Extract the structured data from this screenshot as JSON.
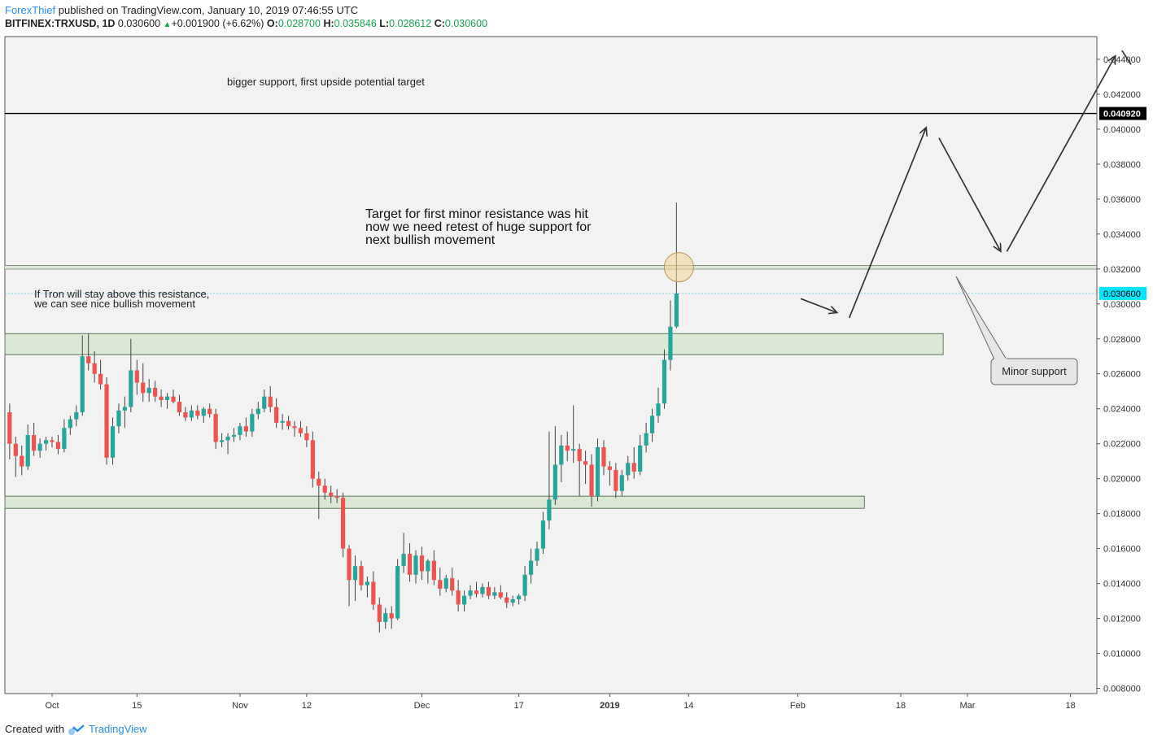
{
  "header": {
    "author": "ForexThief",
    "published_text": " published on TradingView.com, January 10, 2019 07:46:55 UTC",
    "symbol": "BITFINEX:TRXUSD, 1D",
    "last": "0.030600",
    "change": "+0.001900 (+6.62%)",
    "o_label": "O:",
    "o": "0.028700",
    "h_label": "H:",
    "h": "0.035846",
    "l_label": "L:",
    "l": "0.028612",
    "c_label": "C:",
    "c": "0.030600"
  },
  "footer": {
    "created_with": "Created with",
    "brand": "TradingView"
  },
  "colors": {
    "up": "#26a69a",
    "down": "#ef5350",
    "zone_fill": "#dbe8d6",
    "zone_stroke": "#5f7a5a",
    "bg": "#f2f2f2",
    "price_tag": "#00e5ff",
    "level_tag": "#000000"
  },
  "annotations": {
    "bigger_support": "bigger support, first upside potential target",
    "target_line1": "Target for first minor resistance was hit",
    "target_line2": "now we need retest of huge support for",
    "target_line3": "next bullish movement",
    "tron_line1": "If Tron will stay above this resistance,",
    "tron_line2": "we can see nice bullish movement",
    "minor_support": "Minor support"
  },
  "chart_data": {
    "type": "candlestick",
    "symbol": "BITFINEX:TRXUSD",
    "timeframe": "1D",
    "ylim": [
      0.0077,
      0.0453
    ],
    "y_ticks": [
      "0.044000",
      "0.042000",
      "0.040000",
      "0.038000",
      "0.036000",
      "0.034000",
      "0.032000",
      "0.030000",
      "0.028000",
      "0.026000",
      "0.024000",
      "0.022000",
      "0.020000",
      "0.018000",
      "0.016000",
      "0.014000",
      "0.012000",
      "0.010000",
      "0.008000"
    ],
    "x_labels": [
      {
        "label": "Oct",
        "day": 0
      },
      {
        "label": "15",
        "day": 14
      },
      {
        "label": "Nov",
        "day": 31
      },
      {
        "label": "12",
        "day": 42
      },
      {
        "label": "Dec",
        "day": 61
      },
      {
        "label": "17",
        "day": 77
      },
      {
        "label": "2019",
        "day": 92
      },
      {
        "label": "14",
        "day": 105
      },
      {
        "label": "Feb",
        "day": 123
      },
      {
        "label": "18",
        "day": 140
      },
      {
        "label": "Mar",
        "day": 151
      },
      {
        "label": "18",
        "day": 168
      }
    ],
    "first_day": -7,
    "price_tag": "0.030600",
    "level_tag": "0.040920",
    "levels": {
      "current": 0.0306,
      "resistance_line": 0.0409,
      "minor_resistance_top": 0.0322,
      "minor_resistance_bottom": 0.032
    },
    "zones": [
      {
        "top": 0.0283,
        "bottom": 0.0271,
        "end_day": 147
      },
      {
        "top": 0.019,
        "bottom": 0.0183,
        "end_day": 134
      }
    ],
    "projection": [
      {
        "x": 123.5,
        "y": 0.0303,
        "x2": 129.5,
        "y2": 0.0295
      },
      {
        "x": 131.5,
        "y": 0.0292,
        "x2": 144.2,
        "y2": 0.0401
      },
      {
        "x": 146.3,
        "y": 0.0395,
        "x2": 156.5,
        "y2": 0.033
      },
      {
        "x": 157.5,
        "y": 0.033,
        "x2": 175.4,
        "y2": 0.0442
      },
      {
        "x": 176.5,
        "y": 0.0445,
        "x2": 178.0,
        "y2": 0.0437
      }
    ],
    "ohlc": [
      {
        "d": -7,
        "o": 0.0238,
        "h": 0.0243,
        "l": 0.0211,
        "c": 0.022
      },
      {
        "d": -6,
        "o": 0.022,
        "h": 0.0224,
        "l": 0.0201,
        "c": 0.0213
      },
      {
        "d": -5,
        "o": 0.0213,
        "h": 0.0219,
        "l": 0.0202,
        "c": 0.0207
      },
      {
        "d": -4,
        "o": 0.0207,
        "h": 0.0231,
        "l": 0.0205,
        "c": 0.0225
      },
      {
        "d": -3,
        "o": 0.0225,
        "h": 0.0232,
        "l": 0.0213,
        "c": 0.0216
      },
      {
        "d": -2,
        "o": 0.0216,
        "h": 0.0223,
        "l": 0.0212,
        "c": 0.022
      },
      {
        "d": -1,
        "o": 0.022,
        "h": 0.0224,
        "l": 0.0216,
        "c": 0.0222
      },
      {
        "d": 0,
        "o": 0.0222,
        "h": 0.0224,
        "l": 0.0218,
        "c": 0.0221
      },
      {
        "d": 1,
        "o": 0.0221,
        "h": 0.0225,
        "l": 0.0214,
        "c": 0.0217
      },
      {
        "d": 2,
        "o": 0.0217,
        "h": 0.0234,
        "l": 0.0215,
        "c": 0.0229
      },
      {
        "d": 3,
        "o": 0.0229,
        "h": 0.0236,
        "l": 0.0225,
        "c": 0.0234
      },
      {
        "d": 4,
        "o": 0.0234,
        "h": 0.0242,
        "l": 0.023,
        "c": 0.0238
      },
      {
        "d": 5,
        "o": 0.0238,
        "h": 0.0282,
        "l": 0.0236,
        "c": 0.027
      },
      {
        "d": 6,
        "o": 0.027,
        "h": 0.0283,
        "l": 0.0262,
        "c": 0.0266
      },
      {
        "d": 7,
        "o": 0.0266,
        "h": 0.0273,
        "l": 0.0255,
        "c": 0.026
      },
      {
        "d": 8,
        "o": 0.026,
        "h": 0.0268,
        "l": 0.0251,
        "c": 0.0254
      },
      {
        "d": 9,
        "o": 0.0254,
        "h": 0.0258,
        "l": 0.0208,
        "c": 0.0212
      },
      {
        "d": 10,
        "o": 0.0212,
        "h": 0.0235,
        "l": 0.0208,
        "c": 0.023
      },
      {
        "d": 11,
        "o": 0.023,
        "h": 0.0243,
        "l": 0.0226,
        "c": 0.0239
      },
      {
        "d": 12,
        "o": 0.0239,
        "h": 0.0247,
        "l": 0.0229,
        "c": 0.0241
      },
      {
        "d": 13,
        "o": 0.0241,
        "h": 0.028,
        "l": 0.0238,
        "c": 0.0262
      },
      {
        "d": 14,
        "o": 0.0262,
        "h": 0.0268,
        "l": 0.0248,
        "c": 0.0255
      },
      {
        "d": 15,
        "o": 0.0255,
        "h": 0.0266,
        "l": 0.0244,
        "c": 0.0249
      },
      {
        "d": 16,
        "o": 0.0249,
        "h": 0.0257,
        "l": 0.0244,
        "c": 0.0252
      },
      {
        "d": 17,
        "o": 0.0252,
        "h": 0.0256,
        "l": 0.0244,
        "c": 0.0247
      },
      {
        "d": 18,
        "o": 0.0247,
        "h": 0.0251,
        "l": 0.0241,
        "c": 0.0245
      },
      {
        "d": 19,
        "o": 0.0245,
        "h": 0.0249,
        "l": 0.024,
        "c": 0.0247
      },
      {
        "d": 20,
        "o": 0.0247,
        "h": 0.0251,
        "l": 0.0243,
        "c": 0.0244
      },
      {
        "d": 21,
        "o": 0.0244,
        "h": 0.0248,
        "l": 0.0236,
        "c": 0.0238
      },
      {
        "d": 22,
        "o": 0.0238,
        "h": 0.0241,
        "l": 0.0233,
        "c": 0.0235
      },
      {
        "d": 23,
        "o": 0.0235,
        "h": 0.0242,
        "l": 0.0233,
        "c": 0.0239
      },
      {
        "d": 24,
        "o": 0.0239,
        "h": 0.0242,
        "l": 0.0234,
        "c": 0.0236
      },
      {
        "d": 25,
        "o": 0.0236,
        "h": 0.0241,
        "l": 0.0232,
        "c": 0.024
      },
      {
        "d": 26,
        "o": 0.024,
        "h": 0.0243,
        "l": 0.0235,
        "c": 0.0237
      },
      {
        "d": 27,
        "o": 0.0237,
        "h": 0.024,
        "l": 0.0217,
        "c": 0.0221
      },
      {
        "d": 28,
        "o": 0.0221,
        "h": 0.0226,
        "l": 0.0218,
        "c": 0.0222
      },
      {
        "d": 29,
        "o": 0.0222,
        "h": 0.0226,
        "l": 0.0214,
        "c": 0.0224
      },
      {
        "d": 30,
        "o": 0.0224,
        "h": 0.0229,
        "l": 0.0221,
        "c": 0.0225
      },
      {
        "d": 31,
        "o": 0.0225,
        "h": 0.0232,
        "l": 0.0222,
        "c": 0.023
      },
      {
        "d": 32,
        "o": 0.023,
        "h": 0.0235,
        "l": 0.0224,
        "c": 0.0227
      },
      {
        "d": 33,
        "o": 0.0227,
        "h": 0.024,
        "l": 0.0224,
        "c": 0.0237
      },
      {
        "d": 34,
        "o": 0.0237,
        "h": 0.0244,
        "l": 0.0234,
        "c": 0.024
      },
      {
        "d": 35,
        "o": 0.024,
        "h": 0.0251,
        "l": 0.0238,
        "c": 0.0247
      },
      {
        "d": 36,
        "o": 0.0247,
        "h": 0.0253,
        "l": 0.0238,
        "c": 0.0241
      },
      {
        "d": 37,
        "o": 0.0241,
        "h": 0.0246,
        "l": 0.0229,
        "c": 0.0232
      },
      {
        "d": 38,
        "o": 0.0232,
        "h": 0.0237,
        "l": 0.0228,
        "c": 0.0233
      },
      {
        "d": 39,
        "o": 0.0233,
        "h": 0.0236,
        "l": 0.0228,
        "c": 0.023
      },
      {
        "d": 40,
        "o": 0.023,
        "h": 0.0233,
        "l": 0.0224,
        "c": 0.0229
      },
      {
        "d": 41,
        "o": 0.0229,
        "h": 0.0233,
        "l": 0.0224,
        "c": 0.0226
      },
      {
        "d": 42,
        "o": 0.0226,
        "h": 0.023,
        "l": 0.0218,
        "c": 0.0222
      },
      {
        "d": 43,
        "o": 0.0222,
        "h": 0.0227,
        "l": 0.0195,
        "c": 0.02
      },
      {
        "d": 44,
        "o": 0.02,
        "h": 0.0204,
        "l": 0.0177,
        "c": 0.0196
      },
      {
        "d": 45,
        "o": 0.0196,
        "h": 0.02,
        "l": 0.0188,
        "c": 0.0192
      },
      {
        "d": 46,
        "o": 0.0192,
        "h": 0.0196,
        "l": 0.0186,
        "c": 0.019
      },
      {
        "d": 47,
        "o": 0.019,
        "h": 0.0194,
        "l": 0.0186,
        "c": 0.0189
      },
      {
        "d": 48,
        "o": 0.0189,
        "h": 0.0192,
        "l": 0.0155,
        "c": 0.016
      },
      {
        "d": 49,
        "o": 0.016,
        "h": 0.0162,
        "l": 0.0127,
        "c": 0.0142
      },
      {
        "d": 50,
        "o": 0.0142,
        "h": 0.0156,
        "l": 0.013,
        "c": 0.015
      },
      {
        "d": 51,
        "o": 0.015,
        "h": 0.0153,
        "l": 0.0136,
        "c": 0.0139
      },
      {
        "d": 52,
        "o": 0.0139,
        "h": 0.0144,
        "l": 0.0132,
        "c": 0.0141
      },
      {
        "d": 53,
        "o": 0.0141,
        "h": 0.0147,
        "l": 0.0125,
        "c": 0.0128
      },
      {
        "d": 54,
        "o": 0.0128,
        "h": 0.0132,
        "l": 0.0112,
        "c": 0.0118
      },
      {
        "d": 55,
        "o": 0.0118,
        "h": 0.0126,
        "l": 0.0114,
        "c": 0.0123
      },
      {
        "d": 56,
        "o": 0.0123,
        "h": 0.0127,
        "l": 0.0114,
        "c": 0.012
      },
      {
        "d": 57,
        "o": 0.012,
        "h": 0.0154,
        "l": 0.0119,
        "c": 0.015
      },
      {
        "d": 58,
        "o": 0.015,
        "h": 0.0169,
        "l": 0.0146,
        "c": 0.0157
      },
      {
        "d": 59,
        "o": 0.0157,
        "h": 0.0163,
        "l": 0.0141,
        "c": 0.0145
      },
      {
        "d": 60,
        "o": 0.0145,
        "h": 0.0159,
        "l": 0.014,
        "c": 0.0156
      },
      {
        "d": 61,
        "o": 0.0156,
        "h": 0.0161,
        "l": 0.0142,
        "c": 0.0147
      },
      {
        "d": 62,
        "o": 0.0147,
        "h": 0.0154,
        "l": 0.014,
        "c": 0.0153
      },
      {
        "d": 63,
        "o": 0.0153,
        "h": 0.0159,
        "l": 0.0139,
        "c": 0.0142
      },
      {
        "d": 64,
        "o": 0.0142,
        "h": 0.0149,
        "l": 0.0133,
        "c": 0.0137
      },
      {
        "d": 65,
        "o": 0.0137,
        "h": 0.0145,
        "l": 0.0135,
        "c": 0.0143
      },
      {
        "d": 66,
        "o": 0.0143,
        "h": 0.0149,
        "l": 0.0133,
        "c": 0.0136
      },
      {
        "d": 67,
        "o": 0.0136,
        "h": 0.0142,
        "l": 0.0124,
        "c": 0.0128
      },
      {
        "d": 68,
        "o": 0.0128,
        "h": 0.0136,
        "l": 0.0124,
        "c": 0.0133
      },
      {
        "d": 69,
        "o": 0.0133,
        "h": 0.0139,
        "l": 0.0131,
        "c": 0.0136
      },
      {
        "d": 70,
        "o": 0.0136,
        "h": 0.0141,
        "l": 0.0132,
        "c": 0.0134
      },
      {
        "d": 71,
        "o": 0.0134,
        "h": 0.014,
        "l": 0.0132,
        "c": 0.0138
      },
      {
        "d": 72,
        "o": 0.0138,
        "h": 0.0141,
        "l": 0.0131,
        "c": 0.0133
      },
      {
        "d": 73,
        "o": 0.0133,
        "h": 0.0138,
        "l": 0.0131,
        "c": 0.0135
      },
      {
        "d": 74,
        "o": 0.0135,
        "h": 0.0139,
        "l": 0.0131,
        "c": 0.0132
      },
      {
        "d": 75,
        "o": 0.0132,
        "h": 0.0135,
        "l": 0.0126,
        "c": 0.0129
      },
      {
        "d": 76,
        "o": 0.0129,
        "h": 0.0133,
        "l": 0.0127,
        "c": 0.0131
      },
      {
        "d": 77,
        "o": 0.0131,
        "h": 0.0134,
        "l": 0.0128,
        "c": 0.0133
      },
      {
        "d": 78,
        "o": 0.0133,
        "h": 0.015,
        "l": 0.013,
        "c": 0.0145
      },
      {
        "d": 79,
        "o": 0.0145,
        "h": 0.016,
        "l": 0.014,
        "c": 0.0153
      },
      {
        "d": 80,
        "o": 0.0153,
        "h": 0.0164,
        "l": 0.015,
        "c": 0.016
      },
      {
        "d": 81,
        "o": 0.016,
        "h": 0.0181,
        "l": 0.0157,
        "c": 0.0176
      },
      {
        "d": 82,
        "o": 0.0176,
        "h": 0.0227,
        "l": 0.0171,
        "c": 0.0188
      },
      {
        "d": 83,
        "o": 0.0188,
        "h": 0.023,
        "l": 0.0185,
        "c": 0.0208
      },
      {
        "d": 84,
        "o": 0.0208,
        "h": 0.0225,
        "l": 0.0198,
        "c": 0.0219
      },
      {
        "d": 85,
        "o": 0.0219,
        "h": 0.0227,
        "l": 0.021,
        "c": 0.0216
      },
      {
        "d": 86,
        "o": 0.0216,
        "h": 0.0242,
        "l": 0.0209,
        "c": 0.0217
      },
      {
        "d": 87,
        "o": 0.0217,
        "h": 0.022,
        "l": 0.019,
        "c": 0.021
      },
      {
        "d": 88,
        "o": 0.021,
        "h": 0.0216,
        "l": 0.0197,
        "c": 0.0208
      },
      {
        "d": 89,
        "o": 0.0208,
        "h": 0.0214,
        "l": 0.0184,
        "c": 0.019
      },
      {
        "d": 90,
        "o": 0.019,
        "h": 0.0223,
        "l": 0.0187,
        "c": 0.0218
      },
      {
        "d": 91,
        "o": 0.0218,
        "h": 0.0222,
        "l": 0.0202,
        "c": 0.0207
      },
      {
        "d": 92,
        "o": 0.0207,
        "h": 0.021,
        "l": 0.0196,
        "c": 0.0205
      },
      {
        "d": 93,
        "o": 0.0205,
        "h": 0.0209,
        "l": 0.0189,
        "c": 0.0193
      },
      {
        "d": 94,
        "o": 0.0193,
        "h": 0.0205,
        "l": 0.019,
        "c": 0.0202
      },
      {
        "d": 95,
        "o": 0.0202,
        "h": 0.0213,
        "l": 0.0199,
        "c": 0.0209
      },
      {
        "d": 96,
        "o": 0.0209,
        "h": 0.0218,
        "l": 0.02,
        "c": 0.0204
      },
      {
        "d": 97,
        "o": 0.0204,
        "h": 0.0225,
        "l": 0.0202,
        "c": 0.0219
      },
      {
        "d": 98,
        "o": 0.0219,
        "h": 0.0232,
        "l": 0.0215,
        "c": 0.0226
      },
      {
        "d": 99,
        "o": 0.0226,
        "h": 0.024,
        "l": 0.0221,
        "c": 0.0236
      },
      {
        "d": 100,
        "o": 0.0236,
        "h": 0.0252,
        "l": 0.0232,
        "c": 0.0243
      },
      {
        "d": 101,
        "o": 0.0243,
        "h": 0.0274,
        "l": 0.024,
        "c": 0.0268
      },
      {
        "d": 102,
        "o": 0.0268,
        "h": 0.0302,
        "l": 0.0262,
        "c": 0.0287
      },
      {
        "d": 103,
        "o": 0.0287,
        "h": 0.0358,
        "l": 0.0286,
        "c": 0.0306
      }
    ]
  }
}
